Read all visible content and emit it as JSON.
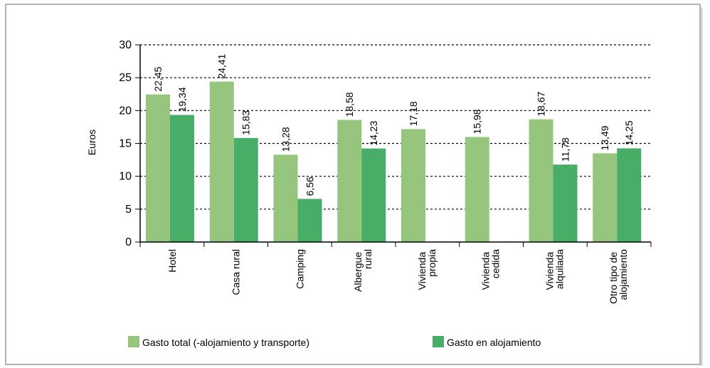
{
  "chart_data": {
    "type": "bar",
    "y_label": "Euros",
    "categories": [
      "Hotel",
      "Casa rural",
      "Camping",
      "Albergue rural",
      "Vivienda propia",
      "Vivienda cedida",
      "Vivienda alquilada",
      "Otro tipo de alojamiento"
    ],
    "series": [
      {
        "name": "Gasto total (-alojamiento y transporte)",
        "color": "#96c67e",
        "values": [
          22.45,
          24.41,
          13.28,
          18.58,
          17.18,
          15.98,
          18.67,
          13.49
        ],
        "value_labels": [
          "22,45",
          "24,41",
          "13,28",
          "18,58",
          "17,18",
          "15,98",
          "18,67",
          "13,49"
        ]
      },
      {
        "name": "Gasto en alojamiento",
        "color": "#47ad67",
        "values": [
          19.34,
          15.83,
          6.56,
          14.23,
          null,
          null,
          11.78,
          14.25
        ],
        "value_labels": [
          "19,34",
          "15,83",
          "6,56",
          "14,23",
          null,
          null,
          "11,78",
          "14,25"
        ]
      }
    ],
    "ylim": [
      0,
      30
    ],
    "yticks": [
      0,
      5,
      10,
      15,
      20,
      25,
      30
    ],
    "grid": true
  }
}
